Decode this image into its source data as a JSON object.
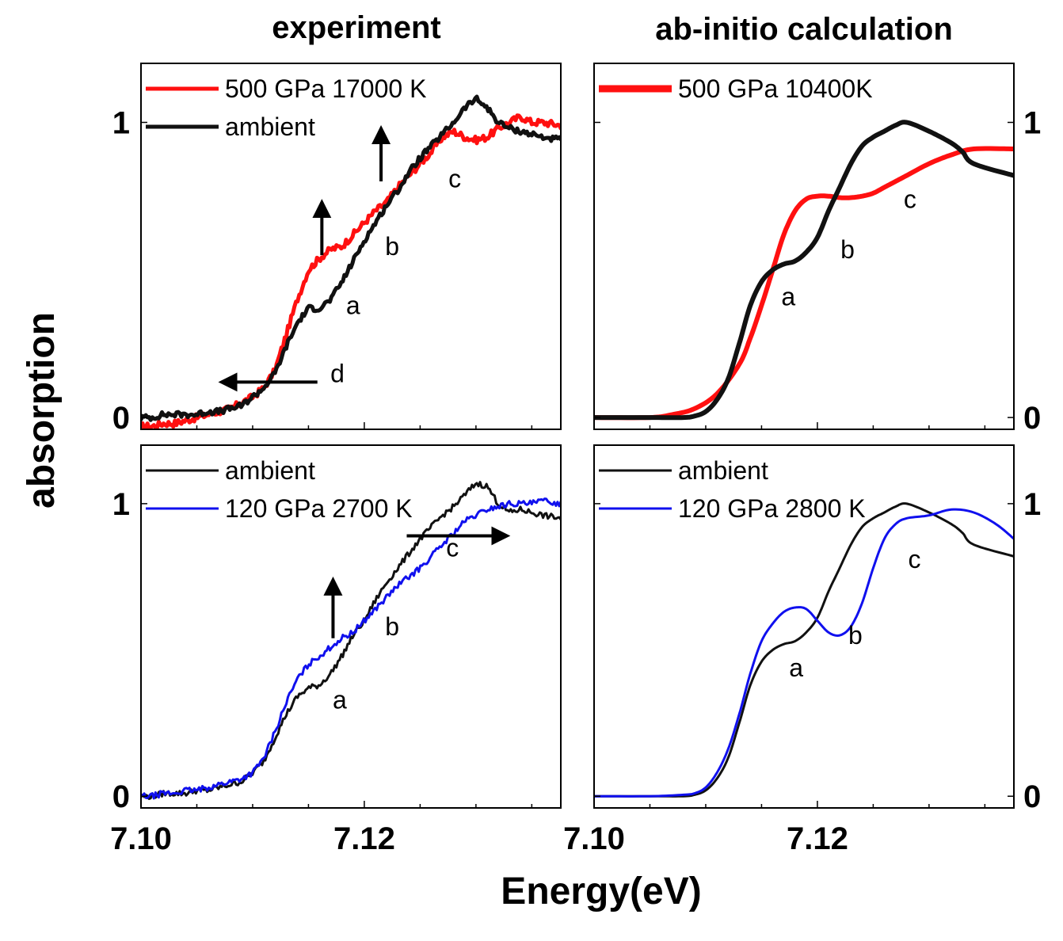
{
  "figure": {
    "column_titles": [
      "experiment",
      "ab-initio calculation"
    ],
    "xlabel": "Energy(eV)",
    "ylabel": "absorption"
  },
  "chart_data": [
    {
      "id": "exp-top",
      "type": "line",
      "xlim": [
        7.1,
        7.1376
      ],
      "ylim": [
        -0.04,
        1.2
      ],
      "xticks": [
        7.1,
        7.12
      ],
      "xtick_labels": [],
      "yticks": [
        0,
        1
      ],
      "ytick_labels": [
        "0",
        "1"
      ],
      "ytick_side": "left",
      "legend": "top-left",
      "series": [
        {
          "name": "500 GPa 17000 K",
          "color": "#ff1010",
          "width": 5,
          "noise": 0.012,
          "x": [
            7.1,
            7.101,
            7.102,
            7.103,
            7.104,
            7.105,
            7.106,
            7.107,
            7.108,
            7.109,
            7.11,
            7.111,
            7.112,
            7.113,
            7.114,
            7.115,
            7.116,
            7.117,
            7.118,
            7.119,
            7.12,
            7.121,
            7.122,
            7.123,
            7.124,
            7.125,
            7.126,
            7.127,
            7.128,
            7.129,
            7.13,
            7.131,
            7.132,
            7.133,
            7.134,
            7.135,
            7.136,
            7.1376
          ],
          "y": [
            -0.03,
            -0.03,
            -0.02,
            -0.02,
            -0.01,
            0.0,
            0.01,
            0.02,
            0.03,
            0.05,
            0.07,
            0.1,
            0.16,
            0.28,
            0.4,
            0.5,
            0.54,
            0.57,
            0.58,
            0.62,
            0.66,
            0.7,
            0.73,
            0.78,
            0.82,
            0.86,
            0.9,
            0.95,
            0.97,
            0.95,
            0.94,
            0.95,
            0.98,
            1.0,
            1.02,
            1.0,
            1.0,
            0.99
          ]
        },
        {
          "name": "ambient",
          "color": "#111111",
          "width": 5,
          "noise": 0.01,
          "x": [
            7.1,
            7.101,
            7.102,
            7.103,
            7.104,
            7.105,
            7.106,
            7.107,
            7.108,
            7.109,
            7.11,
            7.111,
            7.112,
            7.113,
            7.114,
            7.115,
            7.116,
            7.117,
            7.118,
            7.119,
            7.12,
            7.121,
            7.122,
            7.123,
            7.124,
            7.125,
            7.126,
            7.127,
            7.128,
            7.129,
            7.13,
            7.131,
            7.132,
            7.133,
            7.134,
            7.135,
            7.136,
            7.1376
          ],
          "y": [
            0.0,
            0.0,
            0.01,
            0.01,
            0.01,
            0.01,
            0.02,
            0.02,
            0.03,
            0.04,
            0.07,
            0.1,
            0.15,
            0.24,
            0.32,
            0.37,
            0.37,
            0.4,
            0.46,
            0.53,
            0.6,
            0.66,
            0.72,
            0.77,
            0.83,
            0.88,
            0.92,
            0.96,
            1.0,
            1.05,
            1.08,
            1.05,
            1.0,
            0.98,
            0.97,
            0.96,
            0.95,
            0.94
          ]
        }
      ],
      "annotations": [
        {
          "text": "a",
          "x": 7.119,
          "y": 0.35
        },
        {
          "text": "b",
          "x": 7.1225,
          "y": 0.55
        },
        {
          "text": "c",
          "x": 7.1281,
          "y": 0.78
        },
        {
          "text": "d",
          "x": 7.1176,
          "y": 0.12
        }
      ],
      "arrows": [
        {
          "x1": 7.1162,
          "y1": 0.55,
          "x2": 7.1162,
          "y2": 0.73
        },
        {
          "x1": 7.1215,
          "y1": 0.8,
          "x2": 7.1215,
          "y2": 0.98
        },
        {
          "x1": 7.1158,
          "y1": 0.12,
          "x2": 7.1072,
          "y2": 0.12
        }
      ]
    },
    {
      "id": "calc-top",
      "type": "line",
      "xlim": [
        7.1,
        7.1376
      ],
      "ylim": [
        -0.04,
        1.2
      ],
      "xticks": [
        7.1,
        7.12
      ],
      "xtick_labels": [],
      "yticks": [
        0,
        1
      ],
      "ytick_labels": [
        "0",
        "1"
      ],
      "ytick_side": "right",
      "legend": "top-left",
      "series": [
        {
          "name": "500 GPa 10400K",
          "color": "#ff1010",
          "width": 6,
          "legend_width": 9,
          "noise": 0,
          "x": [
            7.1,
            7.105,
            7.107,
            7.109,
            7.111,
            7.113,
            7.114,
            7.115,
            7.116,
            7.117,
            7.118,
            7.119,
            7.12,
            7.121,
            7.122,
            7.123,
            7.124,
            7.125,
            7.126,
            7.127,
            7.128,
            7.13,
            7.132,
            7.134,
            7.1376
          ],
          "y": [
            0.0,
            0.0,
            0.01,
            0.03,
            0.08,
            0.18,
            0.27,
            0.38,
            0.5,
            0.62,
            0.7,
            0.74,
            0.75,
            0.75,
            0.745,
            0.745,
            0.75,
            0.76,
            0.78,
            0.8,
            0.82,
            0.86,
            0.89,
            0.91,
            0.91
          ]
        },
        {
          "name": "ambient",
          "color": "#111111",
          "width": 6,
          "noise": 0,
          "legend": false,
          "x": [
            7.1,
            7.105,
            7.108,
            7.109,
            7.11,
            7.111,
            7.112,
            7.113,
            7.114,
            7.115,
            7.116,
            7.117,
            7.118,
            7.119,
            7.12,
            7.121,
            7.122,
            7.123,
            7.124,
            7.125,
            7.126,
            7.127,
            7.128,
            7.13,
            7.132,
            7.133,
            7.134,
            7.1376
          ],
          "y": [
            0.0,
            0.0,
            0.0,
            0.005,
            0.02,
            0.06,
            0.13,
            0.25,
            0.38,
            0.46,
            0.5,
            0.52,
            0.53,
            0.56,
            0.61,
            0.7,
            0.78,
            0.86,
            0.92,
            0.95,
            0.97,
            0.99,
            1.0,
            0.97,
            0.93,
            0.9,
            0.86,
            0.82
          ]
        }
      ],
      "annotations": [
        {
          "text": "a",
          "x": 7.1174,
          "y": 0.38
        },
        {
          "text": "b",
          "x": 7.1227,
          "y": 0.54
        },
        {
          "text": "c",
          "x": 7.1283,
          "y": 0.71
        }
      ],
      "arrows": []
    },
    {
      "id": "exp-bottom",
      "type": "line",
      "xlim": [
        7.1,
        7.1376
      ],
      "ylim": [
        -0.04,
        1.2
      ],
      "xticks": [
        7.1,
        7.12
      ],
      "xtick_labels": [
        "7.10",
        "7.12"
      ],
      "yticks": [
        0,
        1
      ],
      "ytick_labels": [
        "0",
        "1"
      ],
      "ytick_side": "left",
      "legend": "top-left",
      "series": [
        {
          "name": "ambient",
          "color": "#111111",
          "width": 3,
          "noise": 0.01,
          "x": [
            7.1,
            7.101,
            7.102,
            7.103,
            7.104,
            7.105,
            7.106,
            7.107,
            7.108,
            7.109,
            7.11,
            7.111,
            7.112,
            7.113,
            7.114,
            7.115,
            7.116,
            7.117,
            7.118,
            7.119,
            7.12,
            7.121,
            7.122,
            7.123,
            7.124,
            7.125,
            7.126,
            7.127,
            7.128,
            7.129,
            7.13,
            7.131,
            7.132,
            7.133,
            7.134,
            7.135,
            7.136,
            7.1376
          ],
          "y": [
            0.0,
            0.0,
            0.01,
            0.01,
            0.01,
            0.02,
            0.02,
            0.03,
            0.04,
            0.05,
            0.08,
            0.12,
            0.2,
            0.28,
            0.34,
            0.37,
            0.38,
            0.42,
            0.48,
            0.55,
            0.6,
            0.67,
            0.73,
            0.78,
            0.83,
            0.88,
            0.92,
            0.96,
            0.99,
            1.03,
            1.07,
            1.06,
            1.0,
            0.97,
            0.98,
            0.97,
            0.96,
            0.95
          ]
        },
        {
          "name": "120 GPa 2700 K",
          "color": "#1010ee",
          "width": 3,
          "noise": 0.01,
          "x": [
            7.1,
            7.101,
            7.102,
            7.103,
            7.104,
            7.105,
            7.106,
            7.107,
            7.108,
            7.109,
            7.11,
            7.111,
            7.112,
            7.113,
            7.114,
            7.115,
            7.116,
            7.117,
            7.118,
            7.119,
            7.12,
            7.121,
            7.122,
            7.123,
            7.124,
            7.125,
            7.126,
            7.127,
            7.128,
            7.129,
            7.13,
            7.131,
            7.132,
            7.133,
            7.134,
            7.135,
            7.136,
            7.1376
          ],
          "y": [
            0.0,
            0.0,
            0.01,
            0.01,
            0.02,
            0.02,
            0.03,
            0.04,
            0.05,
            0.06,
            0.08,
            0.13,
            0.22,
            0.32,
            0.4,
            0.45,
            0.48,
            0.51,
            0.54,
            0.56,
            0.6,
            0.64,
            0.68,
            0.72,
            0.75,
            0.78,
            0.82,
            0.86,
            0.9,
            0.94,
            0.96,
            0.98,
            0.99,
            1.0,
            1.0,
            1.0,
            1.01,
            1.0
          ]
        }
      ],
      "annotations": [
        {
          "text": "a",
          "x": 7.1178,
          "y": 0.3
        },
        {
          "text": "b",
          "x": 7.1225,
          "y": 0.55
        },
        {
          "text": "c",
          "x": 7.1279,
          "y": 0.82
        }
      ],
      "arrows": [
        {
          "x1": 7.1172,
          "y1": 0.54,
          "x2": 7.1172,
          "y2": 0.74
        },
        {
          "x1": 7.1238,
          "y1": 0.89,
          "x2": 7.1328,
          "y2": 0.89
        }
      ]
    },
    {
      "id": "calc-bottom",
      "type": "line",
      "xlim": [
        7.1,
        7.1376
      ],
      "ylim": [
        -0.04,
        1.2
      ],
      "xticks": [
        7.1,
        7.12
      ],
      "xtick_labels": [
        "7.10",
        "7.12"
      ],
      "yticks": [
        0,
        1
      ],
      "ytick_labels": [
        "0",
        "1"
      ],
      "ytick_side": "right",
      "legend": "top-left",
      "series": [
        {
          "name": "ambient",
          "color": "#111111",
          "width": 3,
          "noise": 0,
          "x": [
            7.1,
            7.105,
            7.108,
            7.109,
            7.11,
            7.111,
            7.112,
            7.113,
            7.114,
            7.115,
            7.116,
            7.117,
            7.118,
            7.119,
            7.12,
            7.121,
            7.122,
            7.123,
            7.124,
            7.125,
            7.126,
            7.127,
            7.128,
            7.13,
            7.132,
            7.133,
            7.134,
            7.1376
          ],
          "y": [
            0.0,
            0.0,
            0.0,
            0.005,
            0.02,
            0.06,
            0.13,
            0.25,
            0.38,
            0.46,
            0.5,
            0.52,
            0.53,
            0.56,
            0.61,
            0.7,
            0.78,
            0.86,
            0.92,
            0.95,
            0.97,
            0.99,
            1.0,
            0.97,
            0.93,
            0.9,
            0.86,
            0.82
          ]
        },
        {
          "name": "120 GPa 2800 K",
          "color": "#1010ee",
          "width": 3,
          "noise": 0,
          "x": [
            7.1,
            7.105,
            7.108,
            7.109,
            7.11,
            7.111,
            7.112,
            7.113,
            7.114,
            7.115,
            7.116,
            7.117,
            7.118,
            7.119,
            7.12,
            7.121,
            7.122,
            7.123,
            7.124,
            7.125,
            7.126,
            7.127,
            7.128,
            7.13,
            7.132,
            7.134,
            7.136,
            7.1376
          ],
          "y": [
            0.0,
            0.0,
            0.005,
            0.01,
            0.03,
            0.08,
            0.16,
            0.28,
            0.42,
            0.53,
            0.59,
            0.63,
            0.645,
            0.64,
            0.6,
            0.56,
            0.55,
            0.58,
            0.66,
            0.78,
            0.88,
            0.93,
            0.95,
            0.96,
            0.98,
            0.97,
            0.93,
            0.88
          ]
        }
      ],
      "annotations": [
        {
          "text": "a",
          "x": 7.1181,
          "y": 0.41
        },
        {
          "text": "b",
          "x": 7.1234,
          "y": 0.52
        },
        {
          "text": "c",
          "x": 7.1287,
          "y": 0.78
        }
      ],
      "arrows": []
    }
  ]
}
